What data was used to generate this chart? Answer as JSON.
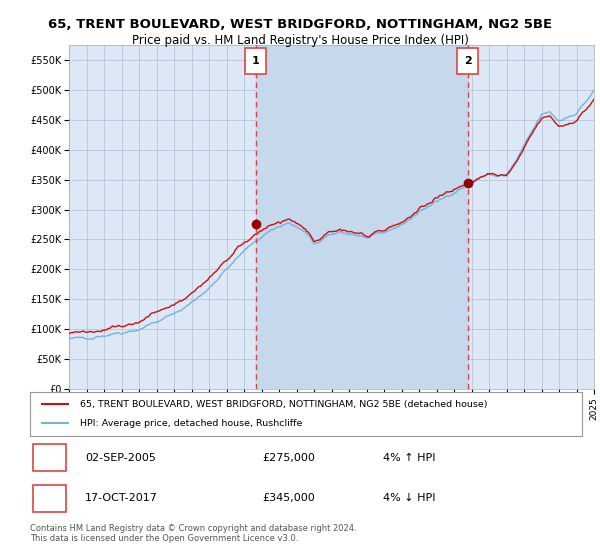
{
  "title": "65, TRENT BOULEVARD, WEST BRIDGFORD, NOTTINGHAM, NG2 5BE",
  "subtitle": "Price paid vs. HM Land Registry's House Price Index (HPI)",
  "legend_line1": "65, TRENT BOULEVARD, WEST BRIDGFORD, NOTTINGHAM, NG2 5BE (detached house)",
  "legend_line2": "HPI: Average price, detached house, Rushcliffe",
  "annotation1_date": "02-SEP-2005",
  "annotation1_price": "£275,000",
  "annotation1_hpi": "4% ↑ HPI",
  "annotation2_date": "17-OCT-2017",
  "annotation2_price": "£345,000",
  "annotation2_hpi": "4% ↓ HPI",
  "vline1_x": 2005.67,
  "vline2_x": 2017.79,
  "dot1_x": 2005.67,
  "dot1_y": 275000,
  "dot2_x": 2017.79,
  "dot2_y": 345000,
  "xmin": 1995,
  "xmax": 2025,
  "ymin": 0,
  "ymax": 575000,
  "yticks": [
    0,
    50000,
    100000,
    150000,
    200000,
    250000,
    300000,
    350000,
    400000,
    450000,
    500000,
    550000
  ],
  "background_color": "#ffffff",
  "plot_bg_color": "#dce8f5",
  "shade_color": "#c5d8ec",
  "grid_color": "#b0bfd0",
  "red_line_color": "#cc1111",
  "blue_line_color": "#7ab0d8",
  "vline_color": "#dd4444",
  "dot_color": "#990000",
  "footer_text": "Contains HM Land Registry data © Crown copyright and database right 2024.\nThis data is licensed under the Open Government Licence v3.0."
}
